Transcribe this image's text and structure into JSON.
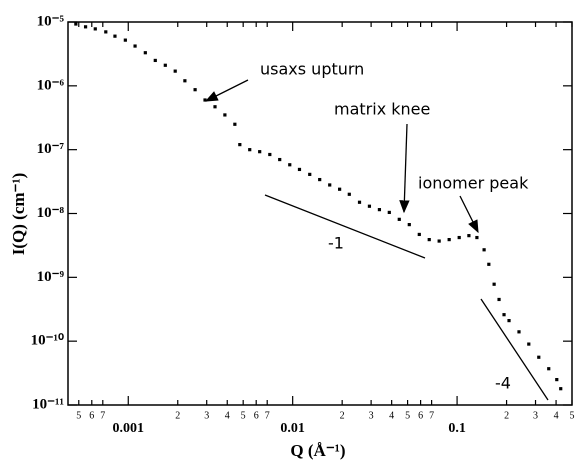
{
  "chart_data": {
    "type": "scatter",
    "xlabel": "Q (Å⁻¹)",
    "ylabel": "I(Q) (cm⁻¹)",
    "xscale": "log",
    "yscale": "log",
    "color": "#000000",
    "annotations": [
      "usaxs upturn",
      "matrix knee",
      "ionomer peak",
      "-1",
      "-4"
    ],
    "xlim": [
      0.00043,
      0.5
    ],
    "ylim": [
      1e-11,
      1e-05
    ],
    "xticks": [
      {
        "value": 0.0005,
        "label": "5"
      },
      {
        "value": 0.0006,
        "label": "6"
      },
      {
        "value": 0.0007,
        "label": "7"
      },
      0.001,
      {
        "value": 0.002,
        "label": "2"
      },
      {
        "value": 0.003,
        "label": "3"
      },
      {
        "value": 0.004,
        "label": "4"
      },
      {
        "value": 0.005,
        "label": "5"
      },
      {
        "value": 0.006,
        "label": "6"
      },
      {
        "value": 0.007,
        "label": "7"
      },
      0.01,
      {
        "value": 0.02,
        "label": "2"
      },
      {
        "value": 0.03,
        "label": "3"
      },
      {
        "value": 0.04,
        "label": "4"
      },
      {
        "value": 0.05,
        "label": "5"
      },
      {
        "value": 0.06,
        "label": "6"
      },
      {
        "value": 0.07,
        "label": "7"
      },
      0.1,
      {
        "value": 0.2,
        "label": "2"
      },
      {
        "value": 0.3,
        "label": "3"
      },
      {
        "value": 0.4,
        "label": "4"
      },
      {
        "value": 0.5,
        "label": "5"
      }
    ],
    "yticks": [
      {
        "value": 1e-11,
        "label": "10⁻¹¹"
      },
      {
        "value": 1e-10,
        "label": "10⁻¹⁰"
      },
      {
        "value": 1e-09,
        "label": "10⁻⁹"
      },
      {
        "value": 1e-08,
        "label": "10⁻⁸"
      },
      {
        "value": 1e-07,
        "label": "10⁻⁷"
      },
      {
        "value": 1e-06,
        "label": "10⁻⁶"
      },
      {
        "value": 1e-05,
        "label": "10⁻⁵"
      }
    ],
    "x": [
      0.00048,
      0.00055,
      0.00063,
      0.00073,
      0.00083,
      0.00096,
      0.0011,
      0.00127,
      0.00146,
      0.00168,
      0.00193,
      0.00221,
      0.00255,
      0.00293,
      0.00337,
      0.00387,
      0.00445,
      0.00477,
      0.00548,
      0.0063,
      0.00726,
      0.00834,
      0.0096,
      0.011,
      0.0127,
      0.0146,
      0.0168,
      0.0193,
      0.0221,
      0.0255,
      0.0293,
      0.0337,
      0.0387,
      0.0445,
      0.0512,
      0.0589,
      0.0677,
      0.0778,
      0.0895,
      0.103,
      0.118,
      0.132,
      0.146,
      0.156,
      0.168,
      0.18,
      0.193,
      0.207,
      0.238,
      0.273,
      0.314,
      0.361,
      0.404,
      0.427
    ],
    "values": [
      9.3e-06,
      8.4e-06,
      7.8e-06,
      7e-06,
      6e-06,
      5.2e-06,
      4.2e-06,
      3.3e-06,
      2.5e-06,
      2.1e-06,
      1.7e-06,
      1.2e-06,
      8.7e-07,
      6e-07,
      4.7e-07,
      3.5e-07,
      2.5e-07,
      1.2e-07,
      1e-07,
      9.3e-08,
      8.4e-08,
      7e-08,
      5.8e-08,
      4.9e-08,
      4.1e-08,
      3.4e-08,
      2.8e-08,
      2.4e-08,
      2e-08,
      1.5e-08,
      1.3e-08,
      1.15e-08,
      1.04e-08,
      8.1e-09,
      6.7e-09,
      4.7e-09,
      3.9e-09,
      3.7e-09,
      3.9e-09,
      4.2e-09,
      4.5e-09,
      4.2e-09,
      2.7e-09,
      1.6e-09,
      7.8e-10,
      4.5e-10,
      2.6e-10,
      2.1e-10,
      1.4e-10,
      9e-11,
      5.6e-11,
      3.7e-11,
      2.5e-11,
      1.8e-11
    ]
  }
}
